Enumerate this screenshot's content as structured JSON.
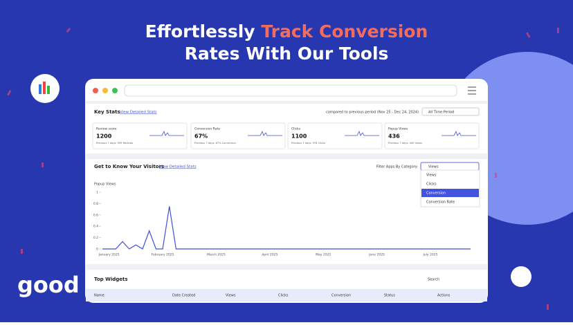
{
  "header": {
    "title_start": "Effortlessly",
    "title_highlight": "Track Conversion",
    "title_end": "Rates With Our Tools"
  },
  "logo": "good",
  "key_stats": {
    "title": "Key Stats",
    "link": "View Detailed Stats",
    "comparison": "compared to previous period (Nov 25 - Dec 24, 2024)",
    "period": "All Time Period",
    "cards": [
      {
        "label": "Review score",
        "value": "1200",
        "previous": "Previous 7 days: 999 Reviews"
      },
      {
        "label": "Conversion Rate",
        "value": "67%",
        "previous": "Previous 7 days: 67% Conversion"
      },
      {
        "label": "Clicks",
        "value": "1100",
        "previous": "Previous 7 days: 978 Clicks"
      },
      {
        "label": "Popup Views",
        "value": "436",
        "previous": "Previous 7 days: 400 Views"
      }
    ]
  },
  "visitors": {
    "title": "Get to Know Your Visitors",
    "link": "View Detailed Stats",
    "filter_label": "Filter Apps By Category:",
    "selected": "Views",
    "options": [
      "Views",
      "Clicks",
      "Conversion",
      "Conversion Rate"
    ]
  },
  "chart_data": {
    "type": "line",
    "y_label": "Popup Views",
    "color": "#3f4fd8",
    "ylim": [
      0,
      1
    ],
    "yticks": [
      0,
      0.2,
      0.4,
      0.6,
      0.8,
      1
    ],
    "categories": [
      null,
      "January 2025",
      null,
      null,
      null,
      null,
      null,
      null,
      null,
      "February 2025",
      null,
      null,
      null,
      null,
      null,
      null,
      null,
      "March 2025",
      null,
      null,
      null,
      null,
      null,
      null,
      null,
      "April 2025",
      null,
      null,
      null,
      null,
      null,
      null,
      null,
      "May 2025",
      null,
      null,
      null,
      null,
      null,
      null,
      null,
      "June 2025",
      null,
      null,
      null,
      null,
      null,
      null,
      null,
      "July 2025",
      null,
      null,
      null,
      null,
      null,
      null
    ],
    "values": [
      0,
      0,
      0,
      0.13,
      0,
      0.07,
      0,
      0.32,
      0,
      0,
      0.75,
      0,
      0,
      0,
      0,
      0,
      0,
      0,
      0,
      0,
      0,
      0,
      0,
      0,
      0,
      0,
      0,
      0,
      0,
      0,
      0,
      0,
      0,
      0,
      0,
      0,
      0,
      0,
      0,
      0,
      0,
      0,
      0,
      0,
      0,
      0,
      0,
      0,
      0,
      0,
      0,
      0,
      0,
      0,
      0,
      0
    ]
  },
  "top_widgets": {
    "title": "Top Widgets",
    "search": "Search",
    "columns": [
      "Name",
      "Date Created",
      "Views",
      "Clicks",
      "Conversion",
      "Status",
      "Actions"
    ]
  }
}
